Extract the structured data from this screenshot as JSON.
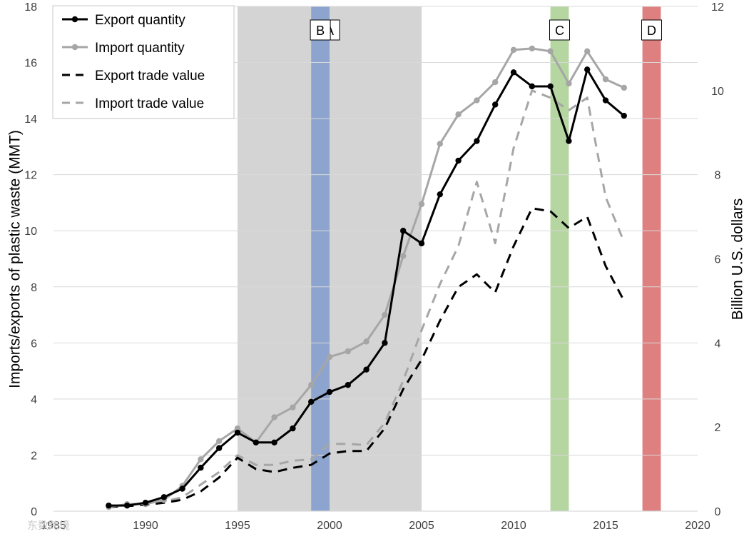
{
  "chart_data": {
    "type": "line",
    "title": "",
    "xlabel": "",
    "ylabel_left": "Imports/exports of plastic waste (MMT)",
    "ylabel_right": "Billion U.S. dollars",
    "xlim": [
      1985,
      2020
    ],
    "ylim_left": [
      0,
      18
    ],
    "ylim_right": [
      0,
      12
    ],
    "x_ticks": [
      1985,
      1990,
      1995,
      2000,
      2005,
      2010,
      2015,
      2020
    ],
    "x_tick_labels": [
      "1985",
      "1990",
      "1995",
      "2000",
      "2005",
      "2010",
      "2015",
      "2020"
    ],
    "y_left_ticks": [
      0,
      2,
      4,
      6,
      8,
      10,
      12,
      14,
      16,
      18
    ],
    "y_left_tick_labels": [
      "0",
      "2",
      "4",
      "6",
      "8",
      "10",
      "12",
      "14",
      "16",
      "18"
    ],
    "y_right_ticks": [
      0,
      2,
      4,
      6,
      8,
      10,
      12
    ],
    "y_right_tick_labels": [
      "0",
      "2",
      "4",
      "6",
      "8",
      "10",
      "12"
    ],
    "grid": true,
    "legend_position": "top-left",
    "shaded_periods": [
      {
        "label": "A",
        "start": 1995,
        "end": 2005,
        "color": "#d4d4d4"
      },
      {
        "label": "B",
        "start": 1999,
        "end": 2000,
        "color": "#8da5ce"
      },
      {
        "label": "C",
        "start": 2012,
        "end": 2013,
        "color": "#b5d6a1"
      },
      {
        "label": "D",
        "start": 2017,
        "end": 2018,
        "color": "#de8080"
      }
    ],
    "series": [
      {
        "name": "Export quantity",
        "axis": "left",
        "style": "solid",
        "color": "#000000",
        "markers": true,
        "x": [
          1988,
          1989,
          1990,
          1991,
          1992,
          1993,
          1994,
          1995,
          1996,
          1997,
          1998,
          1999,
          2000,
          2001,
          2002,
          2003,
          2004,
          2005,
          2006,
          2007,
          2008,
          2009,
          2010,
          2011,
          2012,
          2013,
          2014,
          2015,
          2016
        ],
        "values": [
          0.2,
          0.2,
          0.3,
          0.5,
          0.8,
          1.55,
          2.25,
          2.8,
          2.45,
          2.45,
          2.95,
          3.9,
          4.25,
          4.5,
          5.05,
          6.0,
          10.0,
          9.55,
          11.3,
          12.5,
          13.2,
          14.5,
          15.65,
          15.15,
          15.15,
          13.2,
          15.75,
          14.65,
          14.1
        ]
      },
      {
        "name": "Import quantity",
        "axis": "left",
        "style": "solid",
        "color": "#a6a6a6",
        "markers": true,
        "x": [
          1988,
          1989,
          1990,
          1991,
          1992,
          1993,
          1994,
          1995,
          1996,
          1997,
          1998,
          1999,
          2000,
          2001,
          2002,
          2003,
          2004,
          2005,
          2006,
          2007,
          2008,
          2009,
          2010,
          2011,
          2012,
          2013,
          2014,
          2015,
          2016
        ],
        "values": [
          0.15,
          0.25,
          0.25,
          0.4,
          0.9,
          1.85,
          2.5,
          2.95,
          2.45,
          3.35,
          3.7,
          4.5,
          5.5,
          5.7,
          6.05,
          7.0,
          9.1,
          10.95,
          13.1,
          14.15,
          14.65,
          15.3,
          16.45,
          16.5,
          16.4,
          15.25,
          16.4,
          15.4,
          15.1
        ]
      },
      {
        "name": "Export trade value",
        "axis": "right",
        "style": "dashed",
        "color": "#000000",
        "markers": false,
        "x": [
          1988,
          1989,
          1990,
          1991,
          1992,
          1993,
          1994,
          1995,
          1996,
          1997,
          1998,
          1999,
          2000,
          2001,
          2002,
          2003,
          2004,
          2005,
          2006,
          2007,
          2008,
          2009,
          2010,
          2011,
          2012,
          2013,
          2014,
          2015,
          2016
        ],
        "values": [
          0.1,
          0.12,
          0.15,
          0.2,
          0.27,
          0.47,
          0.8,
          1.27,
          1.0,
          0.93,
          1.03,
          1.1,
          1.37,
          1.43,
          1.43,
          1.97,
          2.9,
          3.6,
          4.53,
          5.33,
          5.63,
          5.2,
          6.3,
          7.2,
          7.13,
          6.73,
          7.0,
          5.83,
          5.0
        ]
      },
      {
        "name": "Import trade value",
        "axis": "right",
        "style": "dashed",
        "color": "#a6a6a6",
        "markers": false,
        "x": [
          1988,
          1989,
          1990,
          1991,
          1992,
          1993,
          1994,
          1995,
          1996,
          1997,
          1998,
          1999,
          2000,
          2001,
          2002,
          2003,
          2004,
          2005,
          2006,
          2007,
          2008,
          2009,
          2010,
          2011,
          2012,
          2013,
          2014,
          2015,
          2016
        ],
        "values": [
          0.1,
          0.13,
          0.17,
          0.23,
          0.33,
          0.63,
          0.93,
          1.33,
          1.1,
          1.1,
          1.2,
          1.23,
          1.6,
          1.6,
          1.57,
          2.1,
          3.1,
          4.3,
          5.4,
          6.3,
          7.83,
          6.37,
          8.63,
          10.0,
          9.83,
          9.53,
          9.83,
          7.47,
          6.4
        ]
      }
    ]
  },
  "watermark": {
    "text": "东数跨境"
  }
}
